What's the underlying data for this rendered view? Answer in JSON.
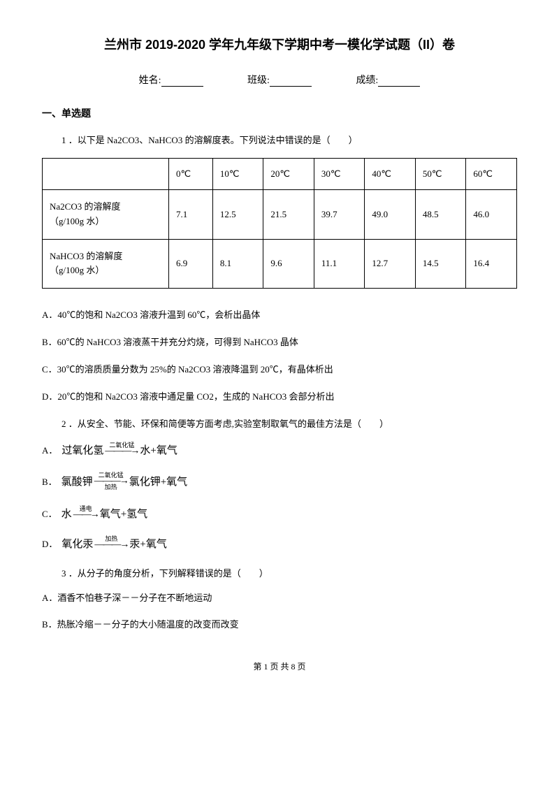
{
  "title": "兰州市 2019-2020 学年九年级下学期中考一模化学试题（II）卷",
  "info": {
    "name_label": "姓名:",
    "class_label": "班级:",
    "score_label": "成绩:"
  },
  "section1": "一、单选题",
  "q1": {
    "text": "1 ．以下是 Na2CO3、NaHCO3 的溶解度表。下列说法中错误的是（　　）",
    "table": {
      "header": [
        "",
        "0℃",
        "10℃",
        "20℃",
        "30℃",
        "40℃",
        "50℃",
        "60℃"
      ],
      "rows": [
        {
          "label_l1": "Na2CO3 的溶解度",
          "label_l2": "（g/100g 水）",
          "vals": [
            "7.1",
            "12.5",
            "21.5",
            "39.7",
            "49.0",
            "48.5",
            "46.0"
          ]
        },
        {
          "label_l1": "NaHCO3 的溶解度",
          "label_l2": "（g/100g 水）",
          "vals": [
            "6.9",
            "8.1",
            "9.6",
            "11.1",
            "12.7",
            "14.5",
            "16.4"
          ]
        }
      ]
    },
    "opts": {
      "A": "A．40℃的饱和 Na2CO3 溶液升温到 60℃，会析出晶体",
      "B": "B．60℃的 NaHCO3 溶液蒸干并充分灼烧，可得到 NaHCO3 晶体",
      "C": "C．30℃的溶质质量分数为 25%的 Na2CO3 溶液降温到 20℃，有晶体析出",
      "D": "D．20℃的饱和 Na2CO3 溶液中通足量 CO2，生成的 NaHCO3 会部分析出"
    }
  },
  "q2": {
    "text": "2 ．从安全、节能、环保和简便等方面考虑,实验室制取氧气的最佳方法是（　　）",
    "A": {
      "letter": "A．",
      "left": "过氧化氢",
      "top": "二氧化锰",
      "bot": "",
      "right": "水+氧气"
    },
    "B": {
      "letter": "B．",
      "left": "氯酸钾",
      "top": "二氧化锰",
      "bot": "加热",
      "right": "氯化钾+氧气"
    },
    "C": {
      "letter": "C．",
      "left": "水",
      "top": "通电",
      "bot": "",
      "right": "氧气+氢气"
    },
    "D": {
      "letter": "D．",
      "left": "氧化汞",
      "top": "加热",
      "bot": "",
      "right": "汞+氧气"
    }
  },
  "q3": {
    "text": "3 ．从分子的角度分析，下列解释错误的是（　　）",
    "A": "A．酒香不怕巷子深－－分子在不断地运动",
    "B": "B．热胀冷缩－－分子的大小随温度的改变而改变"
  },
  "footer": "第 1 页 共 8 页"
}
